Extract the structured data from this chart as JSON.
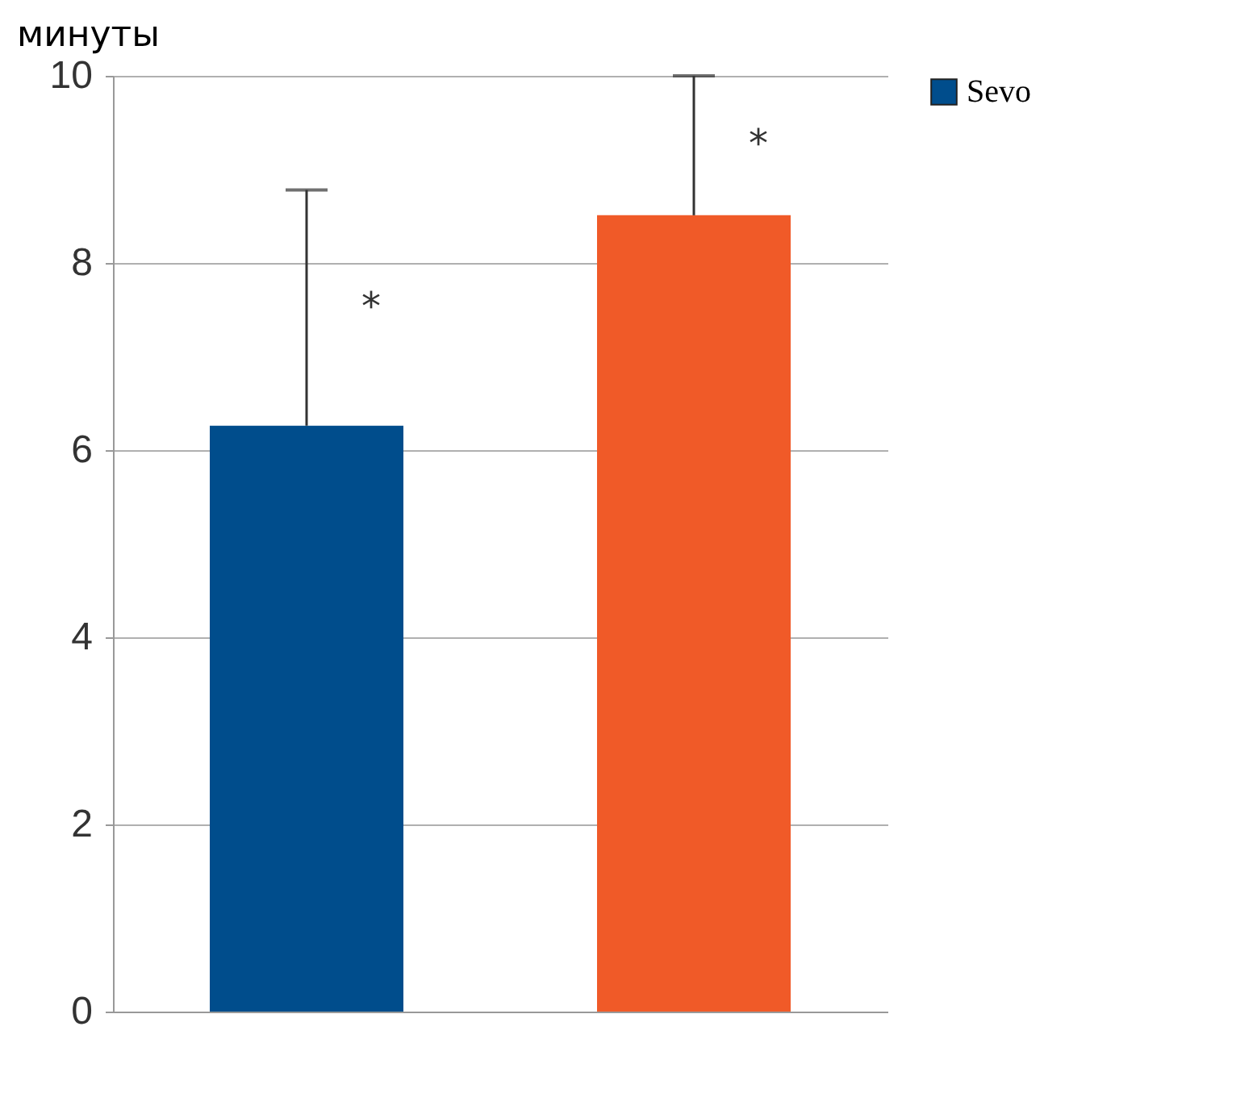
{
  "chart_data": {
    "type": "bar",
    "ylabel": "минуты",
    "categories": [
      null,
      null
    ],
    "series": [
      {
        "name": "Sevo",
        "color": "#004d8c",
        "values": [
          6.26,
          null
        ],
        "errors": [
          2.52,
          null
        ]
      },
      {
        "color": "#f05a28",
        "values": [
          null,
          8.51
        ],
        "errors": [
          null,
          1.49
        ]
      }
    ],
    "ylim": [
      0,
      10
    ],
    "yticks": [
      0,
      2,
      4,
      6,
      8,
      10
    ],
    "grid": "y",
    "legend": "right",
    "tick_labels": "y",
    "annotations": [
      "*",
      "*"
    ]
  }
}
